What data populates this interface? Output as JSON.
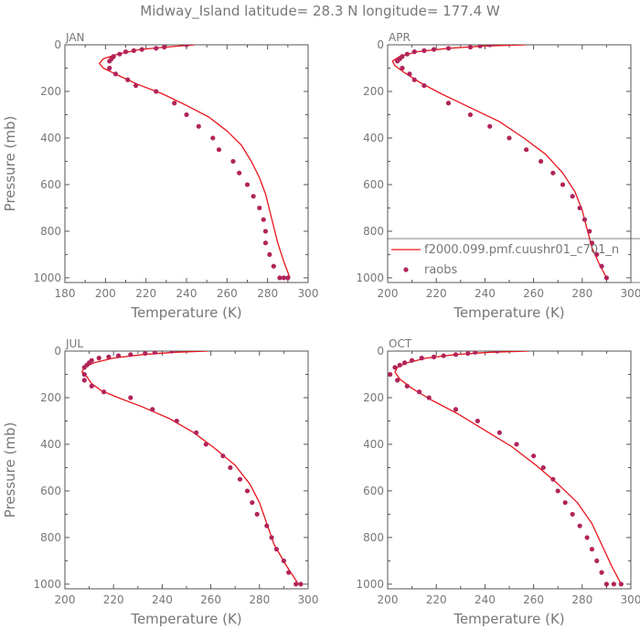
{
  "title": "Midway_Island  latitude= 28.3 N longitude= 177.4 W",
  "colors": {
    "model": "#e8141c",
    "obs": "#b0245a",
    "axis": "#555555",
    "text": "#777777"
  },
  "legend": {
    "panel": 1,
    "model_label": "f2000.099.pmf.cuushr01_c701_n",
    "obs_label": "raobs"
  },
  "chart_data": [
    {
      "type": "line",
      "panel_label": "JAN",
      "xlabel": "Temperature (K)",
      "ylabel": "Pressure (mb)",
      "xlim": [
        180,
        300
      ],
      "ylim": [
        0,
        1020
      ],
      "y_inverted": true,
      "xticks": [
        180,
        200,
        220,
        240,
        260,
        280,
        300
      ],
      "yticks": [
        0,
        200,
        400,
        600,
        800,
        1000
      ],
      "grid": false,
      "series": [
        {
          "name": "f2000.099.pmf.cuushr01_c701_n",
          "kind": "line",
          "x": [
            244,
            230,
            217,
            206,
            199,
            197,
            199,
            206,
            216,
            228,
            240,
            251,
            260,
            267,
            272,
            276,
            279,
            281,
            283,
            285,
            288,
            291
          ],
          "y": [
            0,
            10,
            20,
            40,
            60,
            80,
            100,
            130,
            170,
            210,
            260,
            310,
            370,
            430,
            500,
            570,
            640,
            710,
            780,
            850,
            930,
            1000
          ]
        },
        {
          "name": "raobs",
          "kind": "points",
          "x": [
            240,
            229,
            225,
            218,
            214,
            210,
            207,
            204,
            203,
            202,
            202,
            205,
            211,
            215,
            225,
            234,
            240,
            246,
            253,
            256,
            263,
            266,
            270,
            273,
            276,
            278,
            279,
            279,
            281,
            283,
            286,
            288,
            290
          ],
          "y": [
            0,
            10,
            15,
            20,
            25,
            30,
            40,
            50,
            60,
            70,
            100,
            125,
            150,
            175,
            200,
            250,
            300,
            350,
            400,
            450,
            500,
            550,
            600,
            650,
            700,
            750,
            800,
            850,
            900,
            950,
            1000,
            1000,
            1000
          ]
        }
      ]
    },
    {
      "type": "line",
      "panel_label": "APR",
      "xlabel": "Temperature (K)",
      "ylabel": "",
      "xlim": [
        200,
        300
      ],
      "ylim": [
        0,
        1020
      ],
      "y_inverted": true,
      "xticks": [
        200,
        220,
        240,
        260,
        280,
        300
      ],
      "yticks": [
        0,
        200,
        400,
        600,
        800,
        1000
      ],
      "grid": false,
      "series": [
        {
          "name": "f2000.099.pmf.cuushr01_c701_n",
          "kind": "line",
          "x": [
            257,
            240,
            225,
            212,
            205,
            202,
            203,
            207,
            213,
            222,
            234,
            246,
            256,
            265,
            272,
            277,
            280,
            282,
            284,
            287,
            290
          ],
          "y": [
            0,
            5,
            15,
            30,
            50,
            70,
            90,
            120,
            160,
            210,
            270,
            330,
            400,
            470,
            550,
            630,
            710,
            790,
            870,
            940,
            1000
          ]
        },
        {
          "name": "raobs",
          "kind": "points",
          "x": [
            242,
            238,
            234,
            225,
            219,
            215,
            211,
            208,
            206,
            205,
            204,
            206,
            209,
            211,
            215,
            225,
            234,
            242,
            250,
            257,
            263,
            268,
            272,
            276,
            279,
            281,
            283,
            284,
            286,
            288,
            290
          ],
          "y": [
            0,
            5,
            10,
            15,
            20,
            25,
            30,
            40,
            50,
            60,
            70,
            100,
            125,
            150,
            175,
            250,
            300,
            350,
            400,
            450,
            500,
            550,
            600,
            650,
            700,
            750,
            800,
            850,
            900,
            950,
            1000
          ]
        }
      ]
    },
    {
      "type": "line",
      "panel_label": "JUL",
      "xlabel": "Temperature (K)",
      "ylabel": "Pressure (mb)",
      "xlim": [
        200,
        300
      ],
      "ylim": [
        0,
        1020
      ],
      "y_inverted": true,
      "xticks": [
        200,
        220,
        240,
        260,
        280,
        300
      ],
      "yticks": [
        0,
        200,
        400,
        600,
        800,
        1000
      ],
      "grid": false,
      "series": [
        {
          "name": "f2000.099.pmf.cuushr01_c701_n",
          "kind": "line",
          "x": [
            259,
            245,
            232,
            220,
            212,
            208,
            207,
            209,
            211,
            215,
            222,
            232,
            243,
            253,
            262,
            270,
            276,
            280,
            283,
            286,
            291,
            296
          ],
          "y": [
            0,
            5,
            15,
            30,
            50,
            70,
            90,
            110,
            140,
            170,
            200,
            240,
            290,
            350,
            420,
            490,
            570,
            650,
            740,
            830,
            920,
            1000
          ]
        },
        {
          "name": "raobs",
          "kind": "points",
          "x": [
            244,
            237,
            233,
            227,
            222,
            218,
            214,
            211,
            210,
            209,
            208,
            208,
            208,
            211,
            216,
            227,
            236,
            246,
            254,
            258,
            265,
            268,
            272,
            275,
            277,
            279,
            283,
            285,
            287,
            290,
            292,
            295,
            297
          ],
          "y": [
            0,
            5,
            10,
            15,
            20,
            25,
            30,
            40,
            50,
            60,
            70,
            100,
            125,
            150,
            175,
            200,
            250,
            300,
            350,
            400,
            450,
            500,
            550,
            600,
            650,
            700,
            750,
            800,
            850,
            900,
            950,
            1000,
            1000
          ]
        }
      ]
    },
    {
      "type": "line",
      "panel_label": "OCT",
      "xlabel": "Temperature (K)",
      "ylabel": "",
      "xlim": [
        200,
        300
      ],
      "ylim": [
        0,
        1020
      ],
      "y_inverted": true,
      "xticks": [
        200,
        220,
        240,
        260,
        280,
        300
      ],
      "yticks": [
        0,
        200,
        400,
        600,
        800,
        1000
      ],
      "grid": false,
      "series": [
        {
          "name": "f2000.099.pmf.cuushr01_c701_n",
          "kind": "line",
          "x": [
            258,
            242,
            228,
            216,
            208,
            204,
            203,
            205,
            210,
            218,
            229,
            240,
            251,
            261,
            270,
            278,
            284,
            288,
            292,
            296
          ],
          "y": [
            0,
            5,
            15,
            30,
            50,
            70,
            90,
            120,
            160,
            210,
            270,
            340,
            410,
            490,
            570,
            650,
            740,
            830,
            920,
            1000
          ]
        },
        {
          "name": "raobs",
          "kind": "points",
          "x": [
            245,
            236,
            233,
            228,
            223,
            219,
            214,
            210,
            207,
            205,
            203,
            201,
            204,
            208,
            213,
            217,
            228,
            237,
            246,
            253,
            260,
            264,
            268,
            270,
            273,
            276,
            279,
            282,
            284,
            286,
            288,
            290,
            293,
            296
          ],
          "y": [
            0,
            5,
            10,
            15,
            20,
            25,
            30,
            40,
            50,
            60,
            70,
            100,
            125,
            150,
            175,
            200,
            250,
            300,
            350,
            400,
            450,
            500,
            550,
            600,
            650,
            700,
            750,
            800,
            850,
            900,
            950,
            1000,
            1000,
            1000
          ]
        }
      ]
    }
  ]
}
